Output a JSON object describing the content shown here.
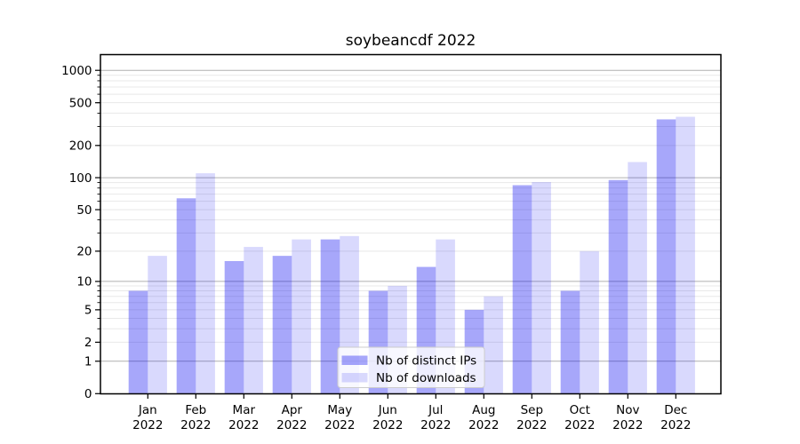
{
  "chart_data": {
    "type": "bar",
    "title": "soybeancdf 2022",
    "scale": "log1p",
    "categories": [
      "Jan",
      "Feb",
      "Mar",
      "Apr",
      "May",
      "Jun",
      "Jul",
      "Aug",
      "Sep",
      "Oct",
      "Nov",
      "Dec"
    ],
    "category_sub": "2022",
    "series": [
      {
        "name": "Nb of distinct IPs",
        "values": [
          8,
          64,
          16,
          18,
          26,
          8,
          14,
          5,
          85,
          8,
          95,
          350
        ],
        "opacity": 0.345
      },
      {
        "name": "Nb of downloads",
        "values": [
          18,
          110,
          22,
          26,
          28,
          9,
          26,
          7,
          91,
          20,
          140,
          370
        ],
        "opacity": 0.15
      }
    ],
    "bar_color": "#0000f0",
    "yticks": [
      0,
      1,
      2,
      5,
      10,
      20,
      50,
      100,
      200,
      500,
      1000
    ],
    "ylim": [
      0,
      1390
    ],
    "xlabel": "",
    "ylabel": "",
    "grid": {
      "major_color": "#b0b0b0",
      "minor_color": "#e8e8e8"
    },
    "legend_position": "lower center"
  }
}
